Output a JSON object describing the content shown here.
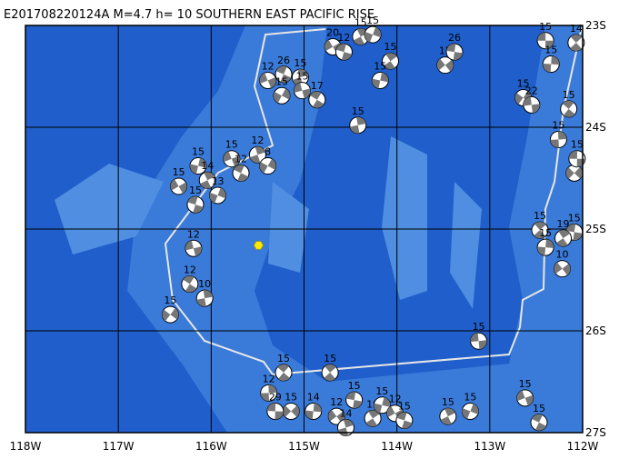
{
  "map": {
    "title": "E201708220124A  M=4.7  h= 10 SOUTHERN EAST PACIFIC RISE",
    "xlim": [
      -118,
      -112
    ],
    "ylim": [
      -23,
      -27
    ],
    "xticks": [
      {
        "value": -118,
        "label": "118W"
      },
      {
        "value": -117,
        "label": "117W"
      },
      {
        "value": -116,
        "label": "116W"
      },
      {
        "value": -115,
        "label": "115W"
      },
      {
        "value": -114,
        "label": "114W"
      },
      {
        "value": -113,
        "label": "113W"
      },
      {
        "value": -112,
        "label": "112W"
      }
    ],
    "yticks": [
      {
        "value": -23,
        "label": "23S"
      },
      {
        "value": -24,
        "label": "24S"
      },
      {
        "value": -25,
        "label": "25S"
      },
      {
        "value": -26,
        "label": "26S"
      },
      {
        "value": -27,
        "label": "27S"
      }
    ],
    "epicenter": {
      "lon": -115.49,
      "lat": -25.16
    },
    "events": [
      {
        "lon": -112.4,
        "lat": -23.15,
        "depth": 15
      },
      {
        "lon": -112.07,
        "lat": -23.17,
        "depth": 14
      },
      {
        "lon": -112.34,
        "lat": -23.38,
        "depth": 15
      },
      {
        "lon": -113.48,
        "lat": -23.39,
        "depth": 15
      },
      {
        "lon": -113.38,
        "lat": -23.26,
        "depth": 26
      },
      {
        "lon": -114.07,
        "lat": -23.35,
        "depth": 15
      },
      {
        "lon": -114.18,
        "lat": -23.54,
        "depth": 15
      },
      {
        "lon": -114.69,
        "lat": -23.21,
        "depth": 20
      },
      {
        "lon": -114.57,
        "lat": -23.26,
        "depth": 12
      },
      {
        "lon": -114.39,
        "lat": -23.11,
        "depth": 15
      },
      {
        "lon": -114.26,
        "lat": -23.09,
        "depth": 15
      },
      {
        "lon": -115.39,
        "lat": -23.54,
        "depth": 12
      },
      {
        "lon": -115.22,
        "lat": -23.48,
        "depth": 26
      },
      {
        "lon": -115.04,
        "lat": -23.51,
        "depth": 15
      },
      {
        "lon": -115.24,
        "lat": -23.69,
        "depth": 15
      },
      {
        "lon": -115.02,
        "lat": -23.64,
        "depth": 15
      },
      {
        "lon": -114.86,
        "lat": -23.73,
        "depth": 17
      },
      {
        "lon": -114.42,
        "lat": -23.98,
        "depth": 15
      },
      {
        "lon": -112.64,
        "lat": -23.71,
        "depth": 15
      },
      {
        "lon": -112.55,
        "lat": -23.78,
        "depth": 22
      },
      {
        "lon": -112.15,
        "lat": -23.82,
        "depth": 15
      },
      {
        "lon": -112.26,
        "lat": -24.12,
        "depth": 15
      },
      {
        "lon": -112.09,
        "lat": -24.45,
        "depth": 15
      },
      {
        "lon": -112.06,
        "lat": -24.31,
        "depth": 15
      },
      {
        "lon": -112.46,
        "lat": -25.01,
        "depth": 15
      },
      {
        "lon": -112.4,
        "lat": -25.18,
        "depth": 15
      },
      {
        "lon": -112.22,
        "lat": -25.39,
        "depth": 10
      },
      {
        "lon": -112.09,
        "lat": -25.03,
        "depth": 15
      },
      {
        "lon": -112.21,
        "lat": -25.09,
        "depth": 19
      },
      {
        "lon": -116.14,
        "lat": -24.38,
        "depth": 15
      },
      {
        "lon": -116.35,
        "lat": -24.58,
        "depth": 15
      },
      {
        "lon": -116.17,
        "lat": -24.76,
        "depth": 15
      },
      {
        "lon": -116.04,
        "lat": -24.52,
        "depth": 14
      },
      {
        "lon": -115.93,
        "lat": -24.67,
        "depth": 13
      },
      {
        "lon": -115.78,
        "lat": -24.31,
        "depth": 15
      },
      {
        "lon": -115.68,
        "lat": -24.45,
        "depth": 12
      },
      {
        "lon": -115.5,
        "lat": -24.27,
        "depth": 12
      },
      {
        "lon": -115.39,
        "lat": -24.38,
        "depth": 8
      },
      {
        "lon": -116.19,
        "lat": -25.19,
        "depth": 12
      },
      {
        "lon": -116.23,
        "lat": -25.54,
        "depth": 12
      },
      {
        "lon": -116.07,
        "lat": -25.68,
        "depth": 10
      },
      {
        "lon": -116.44,
        "lat": -25.84,
        "depth": 15
      },
      {
        "lon": -113.12,
        "lat": -26.1,
        "depth": 15
      },
      {
        "lon": -115.22,
        "lat": -26.41,
        "depth": 15
      },
      {
        "lon": -115.38,
        "lat": -26.61,
        "depth": 12
      },
      {
        "lon": -115.14,
        "lat": -26.79,
        "depth": 15
      },
      {
        "lon": -115.31,
        "lat": -26.79,
        "depth": 29
      },
      {
        "lon": -114.72,
        "lat": -26.41,
        "depth": 15
      },
      {
        "lon": -114.9,
        "lat": -26.79,
        "depth": 14
      },
      {
        "lon": -114.65,
        "lat": -26.84,
        "depth": 12
      },
      {
        "lon": -114.46,
        "lat": -26.68,
        "depth": 15
      },
      {
        "lon": -114.26,
        "lat": -26.86,
        "depth": 19
      },
      {
        "lon": -114.16,
        "lat": -26.73,
        "depth": 15
      },
      {
        "lon": -114.02,
        "lat": -26.81,
        "depth": 12
      },
      {
        "lon": -113.92,
        "lat": -26.88,
        "depth": 15
      },
      {
        "lon": -113.45,
        "lat": -26.84,
        "depth": 15
      },
      {
        "lon": -113.21,
        "lat": -26.79,
        "depth": 15
      },
      {
        "lon": -112.62,
        "lat": -26.66,
        "depth": 15
      },
      {
        "lon": -112.47,
        "lat": -26.9,
        "depth": 15
      },
      {
        "lon": -114.55,
        "lat": -26.95,
        "depth": 14
      }
    ]
  }
}
